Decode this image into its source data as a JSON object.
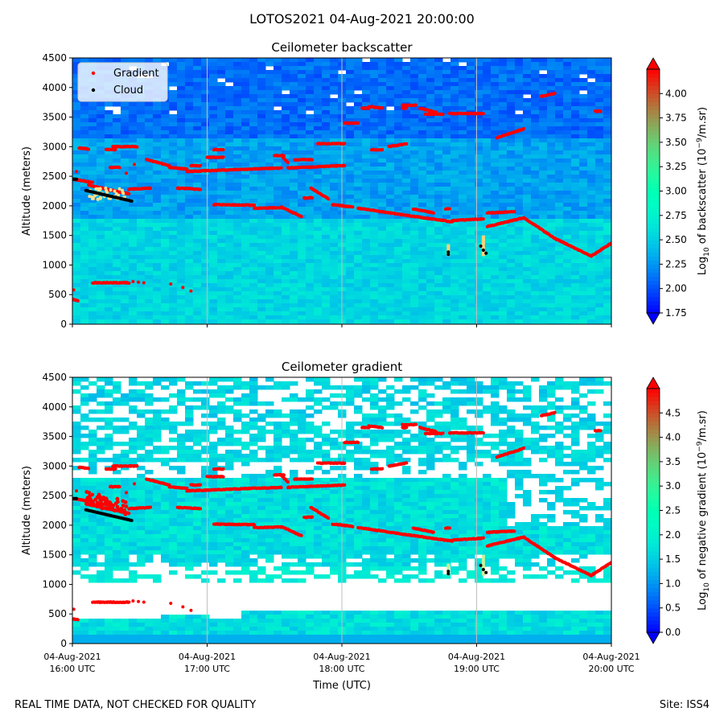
{
  "suptitle": "LOTOS2021 04-Aug-2021 20:00:00",
  "footer": {
    "left": "REAL TIME DATA, NOT CHECKED FOR QUALITY",
    "right": "Site: ISS4"
  },
  "colors": {
    "gradient_marker": "#ff0000",
    "cloud_marker": "#000000",
    "vgrid": "#bfbfbf"
  },
  "chart_data": [
    {
      "type": "heatmap",
      "title": "Ceilometer backscatter",
      "ylabel": "Altitude (meters)",
      "xlabel": "",
      "ylim": [
        0,
        4500
      ],
      "yticks": [
        0,
        500,
        1000,
        1500,
        2000,
        2500,
        3000,
        3500,
        4000,
        4500
      ],
      "xticks": [
        "04-Aug-2021 16:00 UTC",
        "04-Aug-2021 17:00 UTC",
        "04-Aug-2021 18:00 UTC",
        "04-Aug-2021 19:00 UTC",
        "04-Aug-2021 20:00 UTC"
      ],
      "xtick_labels_shown": false,
      "xgrid": true,
      "legend": {
        "placement": "top-left",
        "entries": [
          "Gradient",
          "Cloud"
        ]
      },
      "colorbar": {
        "label": "Log10 of backscatter (10^-9/m.sr)",
        "label_main": "Log",
        "label_sub": "10",
        "label_mid": " of backscatter (10",
        "label_sup": "−9",
        "label_end": "/m.sr)",
        "range": [
          1.75,
          4.25
        ],
        "ticks": [
          "1.75",
          "2.00",
          "2.25",
          "2.50",
          "2.75",
          "3.00",
          "3.25",
          "3.50",
          "3.75",
          "4.00"
        ]
      },
      "field": {
        "band_low": 2.55,
        "band_mid": 2.3,
        "band_high": 2.1
      }
    },
    {
      "type": "heatmap",
      "title": "Ceilometer gradient",
      "ylabel": "Altitude (meters)",
      "xlabel": "Time (UTC)",
      "ylim": [
        0,
        4500
      ],
      "yticks": [
        0,
        500,
        1000,
        1500,
        2000,
        2500,
        3000,
        3500,
        4000,
        4500
      ],
      "xticks": [
        "04-Aug-2021 16:00 UTC",
        "04-Aug-2021 17:00 UTC",
        "04-Aug-2021 18:00 UTC",
        "04-Aug-2021 19:00 UTC",
        "04-Aug-2021 20:00 UTC"
      ],
      "xtick_lines": [
        [
          "04-Aug-2021",
          "16:00 UTC"
        ],
        [
          "04-Aug-2021",
          "17:00 UTC"
        ],
        [
          "04-Aug-2021",
          "18:00 UTC"
        ],
        [
          "04-Aug-2021",
          "19:00 UTC"
        ],
        [
          "04-Aug-2021",
          "20:00 UTC"
        ]
      ],
      "xtick_labels_shown": true,
      "xgrid": true,
      "colorbar": {
        "label": "Log10 of negative gradient (10^-9/m.sr)",
        "label_main": "Log",
        "label_sub": "10",
        "label_mid": " of negative gradient (10",
        "label_sup": "−9",
        "label_end": "/m.sr)",
        "range": [
          0.0,
          5.0
        ],
        "ticks": [
          "0.0",
          "0.5",
          "1.0",
          "1.5",
          "2.0",
          "2.5",
          "3.0",
          "3.5",
          "4.0",
          "4.5"
        ]
      }
    }
  ],
  "series": {
    "gradient_segments": [
      {
        "t": [
          16.0,
          16.04
        ],
        "alt": [
          420,
          400
        ]
      },
      {
        "t": [
          16.0,
          16.15
        ],
        "alt": [
          2450,
          2400
        ]
      },
      {
        "t": [
          16.05,
          16.12
        ],
        "alt": [
          2980,
          2960
        ]
      },
      {
        "t": [
          16.12,
          16.42
        ],
        "alt": [
          2350,
          2200
        ]
      },
      {
        "t": [
          16.42,
          16.58
        ],
        "alt": [
          2280,
          2300
        ]
      },
      {
        "t": [
          16.15,
          16.42
        ],
        "alt": [
          700,
          700
        ]
      },
      {
        "t": [
          16.25,
          16.32
        ],
        "alt": [
          2950,
          2950
        ]
      },
      {
        "t": [
          16.3,
          16.48
        ],
        "alt": [
          3000,
          3000
        ]
      },
      {
        "t": [
          16.28,
          16.35
        ],
        "alt": [
          2650,
          2650
        ]
      },
      {
        "t": [
          16.55,
          16.72
        ],
        "alt": [
          2780,
          2680
        ]
      },
      {
        "t": [
          16.72,
          16.85
        ],
        "alt": [
          2650,
          2620
        ]
      },
      {
        "t": [
          16.78,
          16.95
        ],
        "alt": [
          2300,
          2280
        ]
      },
      {
        "t": [
          16.88,
          16.95
        ],
        "alt": [
          2680,
          2680
        ]
      },
      {
        "t": [
          16.85,
          17.3
        ],
        "alt": [
          2580,
          2620
        ]
      },
      {
        "t": [
          17.0,
          17.12
        ],
        "alt": [
          2820,
          2820
        ]
      },
      {
        "t": [
          17.05,
          17.12
        ],
        "alt": [
          2950,
          2950
        ]
      },
      {
        "t": [
          17.05,
          17.35
        ],
        "alt": [
          2020,
          2010
        ]
      },
      {
        "t": [
          17.3,
          17.55
        ],
        "alt": [
          2620,
          2640
        ]
      },
      {
        "t": [
          17.35,
          17.55
        ],
        "alt": [
          1960,
          1970
        ]
      },
      {
        "t": [
          17.5,
          17.57
        ],
        "alt": [
          2850,
          2850
        ]
      },
      {
        "t": [
          17.55,
          17.7
        ],
        "alt": [
          1980,
          1820
        ]
      },
      {
        "t": [
          17.55,
          17.6
        ],
        "alt": [
          2850,
          2730
        ]
      },
      {
        "t": [
          17.6,
          18.02
        ],
        "alt": [
          2640,
          2680
        ]
      },
      {
        "t": [
          17.65,
          17.78
        ],
        "alt": [
          2780,
          2780
        ]
      },
      {
        "t": [
          17.72,
          17.78
        ],
        "alt": [
          2130,
          2140
        ]
      },
      {
        "t": [
          17.77,
          17.9
        ],
        "alt": [
          2300,
          2120
        ]
      },
      {
        "t": [
          17.82,
          18.02
        ],
        "alt": [
          3050,
          3050
        ]
      },
      {
        "t": [
          17.93,
          18.08
        ],
        "alt": [
          2020,
          1980
        ]
      },
      {
        "t": [
          18.02,
          18.12
        ],
        "alt": [
          3400,
          3400
        ]
      },
      {
        "t": [
          18.12,
          18.48
        ],
        "alt": [
          1960,
          1840
        ]
      },
      {
        "t": [
          18.15,
          18.2
        ],
        "alt": [
          3650,
          3650
        ]
      },
      {
        "t": [
          18.2,
          18.3
        ],
        "alt": [
          3680,
          3650
        ]
      },
      {
        "t": [
          18.22,
          18.3
        ],
        "alt": [
          2950,
          2950
        ]
      },
      {
        "t": [
          18.35,
          18.48
        ],
        "alt": [
          3000,
          3050
        ]
      },
      {
        "t": [
          18.45,
          18.55
        ],
        "alt": [
          3700,
          3700
        ]
      },
      {
        "t": [
          18.45,
          18.48
        ],
        "alt": [
          3650,
          3650
        ]
      },
      {
        "t": [
          18.48,
          18.82
        ],
        "alt": [
          1840,
          1730
        ]
      },
      {
        "t": [
          18.53,
          18.68
        ],
        "alt": [
          1950,
          1880
        ]
      },
      {
        "t": [
          18.58,
          18.7
        ],
        "alt": [
          3650,
          3580
        ]
      },
      {
        "t": [
          18.62,
          18.75
        ],
        "alt": [
          3550,
          3550
        ]
      },
      {
        "t": [
          18.77,
          18.8
        ],
        "alt": [
          1950,
          1950
        ]
      },
      {
        "t": [
          18.82,
          19.05
        ],
        "alt": [
          1750,
          1780
        ]
      },
      {
        "t": [
          18.8,
          19.05
        ],
        "alt": [
          3560,
          3560
        ]
      },
      {
        "t": [
          19.08,
          19.28
        ],
        "alt": [
          1880,
          1900
        ]
      },
      {
        "t": [
          19.08,
          19.35
        ],
        "alt": [
          1650,
          1800
        ]
      },
      {
        "t": [
          19.15,
          19.35
        ],
        "alt": [
          3150,
          3300
        ]
      },
      {
        "t": [
          19.35,
          19.58
        ],
        "alt": [
          1800,
          1450
        ]
      },
      {
        "t": [
          19.48,
          19.58
        ],
        "alt": [
          3850,
          3900
        ]
      },
      {
        "t": [
          19.58,
          19.85
        ],
        "alt": [
          1450,
          1150
        ]
      },
      {
        "t": [
          19.85,
          20.0
        ],
        "alt": [
          1150,
          1370
        ]
      },
      {
        "t": [
          19.88,
          19.92
        ],
        "alt": [
          3600,
          3600
        ]
      }
    ],
    "gradient_points": [
      {
        "t": 16.01,
        "alt": 580
      },
      {
        "t": 16.03,
        "alt": 2580
      },
      {
        "t": 16.45,
        "alt": 720
      },
      {
        "t": 16.49,
        "alt": 710
      },
      {
        "t": 16.53,
        "alt": 700
      },
      {
        "t": 16.73,
        "alt": 680
      },
      {
        "t": 16.82,
        "alt": 620
      },
      {
        "t": 16.88,
        "alt": 560
      },
      {
        "t": 16.4,
        "alt": 2550
      },
      {
        "t": 16.46,
        "alt": 2700
      }
    ],
    "cloud_segments": [
      {
        "t": [
          16.1,
          16.44
        ],
        "alt": [
          2260,
          2080
        ]
      },
      {
        "t": [
          16.0,
          16.03
        ],
        "alt": [
          2450,
          2450
        ]
      }
    ],
    "cloud_points": [
      {
        "t": 18.79,
        "alt": 1220
      },
      {
        "t": 18.79,
        "alt": 1180
      },
      {
        "t": 19.03,
        "alt": 1320
      },
      {
        "t": 19.05,
        "alt": 1250
      },
      {
        "t": 19.07,
        "alt": 1200
      }
    ],
    "spikes": [
      {
        "t": 18.79,
        "alt_low": 1150,
        "alt_high": 1350
      },
      {
        "t": 19.05,
        "alt_low": 1150,
        "alt_high": 1500
      }
    ]
  }
}
